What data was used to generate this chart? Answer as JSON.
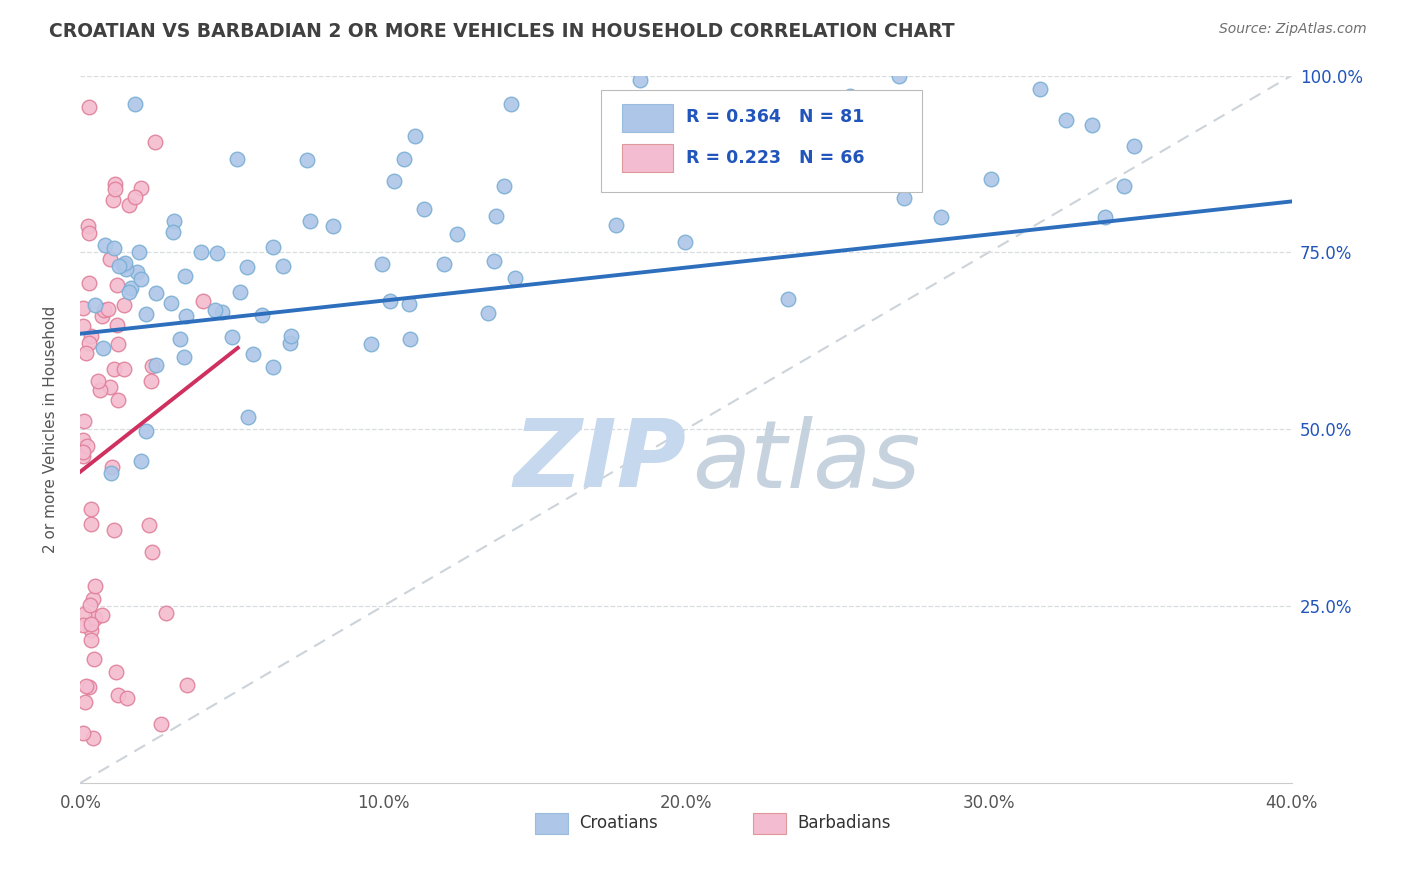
{
  "title": "CROATIAN VS BARBADIAN 2 OR MORE VEHICLES IN HOUSEHOLD CORRELATION CHART",
  "source": "Source: ZipAtlas.com",
  "ylabel": "2 or more Vehicles in Household",
  "xmin": 0.0,
  "xmax": 0.4,
  "ymin": 0.0,
  "ymax": 1.0,
  "blue_R": 0.364,
  "blue_N": 81,
  "pink_R": 0.223,
  "pink_N": 66,
  "blue_color": "#aec6e8",
  "blue_edge": "#7aafd4",
  "blue_line_color": "#2e6fbd",
  "pink_color": "#f4bcd0",
  "pink_edge": "#e0809a",
  "pink_line_color": "#d03060",
  "legend_blue_color": "#aec6e8",
  "legend_pink_color": "#f4bcd0",
  "legend_text_color": "#2255bb",
  "watermark_zip_color": "#c5d8ee",
  "watermark_atlas_color": "#b8c8d8",
  "title_color": "#404040",
  "source_color": "#707070",
  "xtick_labels": [
    "0.0%",
    "10.0%",
    "20.0%",
    "30.0%",
    "40.0%"
  ],
  "xtick_values": [
    0.0,
    0.1,
    0.2,
    0.3,
    0.4
  ],
  "ytick_values": [
    0.25,
    0.5,
    0.75,
    1.0
  ],
  "ytick_labels_right": [
    "25.0%",
    "50.0%",
    "75.0%",
    "100.0%"
  ],
  "blue_trend_x0": 0.0,
  "blue_trend_x1": 0.4,
  "blue_trend_y0": 0.635,
  "blue_trend_y1": 0.822,
  "pink_trend_x0": 0.0,
  "pink_trend_x1": 0.052,
  "pink_trend_y0": 0.44,
  "pink_trend_y1": 0.615,
  "diag_line_color": "#c0c8d0",
  "grid_color": "#d8dde2",
  "figsize": [
    14.06,
    8.92
  ]
}
